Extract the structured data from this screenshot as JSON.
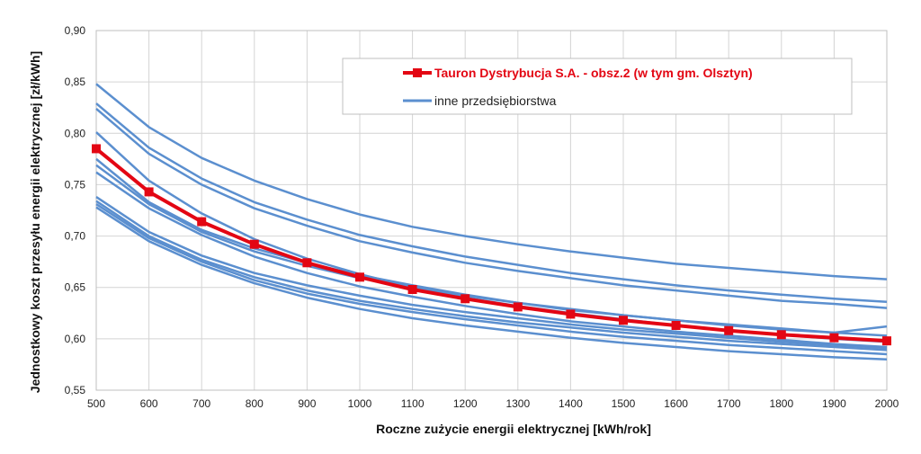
{
  "chart_data": {
    "type": "line",
    "xlabel": "Roczne zużycie energii elektrycznej [kWh/rok]",
    "ylabel": "Jednostkowy koszt przesyłu energii elektrycznej [zł/kWh]",
    "x": [
      500,
      600,
      700,
      800,
      900,
      1000,
      1100,
      1200,
      1300,
      1400,
      1500,
      1600,
      1700,
      1800,
      1900,
      2000
    ],
    "xticks": [
      "500",
      "600",
      "700",
      "800",
      "900",
      "1000",
      "1100",
      "1200",
      "1300",
      "1400",
      "1500",
      "1600",
      "1700",
      "1800",
      "1900",
      "2000"
    ],
    "yticks": [
      0.55,
      0.6,
      0.65,
      0.7,
      0.75,
      0.8,
      0.85,
      0.9
    ],
    "ytick_labels": [
      "0,55",
      "0,60",
      "0,65",
      "0,70",
      "0,75",
      "0,80",
      "0,85",
      "0,90"
    ],
    "ylim": [
      0.55,
      0.9
    ],
    "xlim": [
      500,
      2000
    ],
    "grid": true,
    "legend_position": "top-right",
    "highlight_color": "#e30613",
    "other_color": "#5b8fcf",
    "series": [
      {
        "name": "Tauron Dystrybucja S.A. - obsz.2 (w tym gm. Olsztyn)",
        "highlight": true,
        "marker": "square",
        "values": [
          0.785,
          0.743,
          0.714,
          0.692,
          0.674,
          0.66,
          0.648,
          0.639,
          0.631,
          0.624,
          0.618,
          0.613,
          0.608,
          0.604,
          0.601,
          0.598
        ]
      },
      {
        "name": "inne przedsiębiorstwa",
        "values": [
          0.848,
          0.806,
          0.776,
          0.754,
          0.736,
          0.721,
          0.709,
          0.7,
          0.692,
          0.685,
          0.679,
          0.673,
          0.669,
          0.665,
          0.661,
          0.658
        ]
      },
      {
        "values": [
          0.829,
          0.786,
          0.756,
          0.733,
          0.716,
          0.701,
          0.69,
          0.68,
          0.672,
          0.664,
          0.658,
          0.652,
          0.647,
          0.643,
          0.639,
          0.636
        ]
      },
      {
        "values": [
          0.824,
          0.78,
          0.75,
          0.727,
          0.71,
          0.695,
          0.684,
          0.674,
          0.666,
          0.659,
          0.652,
          0.647,
          0.642,
          0.637,
          0.634,
          0.63
        ]
      },
      {
        "values": [
          0.801,
          0.754,
          0.722,
          0.697,
          0.678,
          0.663,
          0.65,
          0.64,
          0.632,
          0.625,
          0.619,
          0.613,
          0.608,
          0.604,
          0.6,
          0.597
        ]
      },
      {
        "values": [
          0.775,
          0.733,
          0.706,
          0.688,
          0.674,
          0.662,
          0.652,
          0.643,
          0.635,
          0.629,
          0.623,
          0.618,
          0.614,
          0.61,
          0.606,
          0.612
        ]
      },
      {
        "values": [
          0.769,
          0.731,
          0.704,
          0.685,
          0.671,
          0.659,
          0.65,
          0.642,
          0.635,
          0.628,
          0.623,
          0.618,
          0.613,
          0.609,
          0.606,
          0.603
        ]
      },
      {
        "values": [
          0.762,
          0.727,
          0.701,
          0.68,
          0.664,
          0.651,
          0.641,
          0.632,
          0.624,
          0.617,
          0.612,
          0.607,
          0.603,
          0.599,
          0.595,
          0.592
        ]
      },
      {
        "values": [
          0.738,
          0.704,
          0.681,
          0.664,
          0.652,
          0.642,
          0.633,
          0.626,
          0.62,
          0.614,
          0.609,
          0.605,
          0.601,
          0.597,
          0.594,
          0.591
        ]
      },
      {
        "values": [
          0.734,
          0.7,
          0.677,
          0.66,
          0.647,
          0.637,
          0.629,
          0.622,
          0.616,
          0.611,
          0.606,
          0.602,
          0.598,
          0.595,
          0.592,
          0.589
        ]
      },
      {
        "values": [
          0.731,
          0.698,
          0.675,
          0.657,
          0.644,
          0.634,
          0.626,
          0.619,
          0.613,
          0.607,
          0.602,
          0.598,
          0.594,
          0.591,
          0.588,
          0.585
        ]
      },
      {
        "values": [
          0.728,
          0.695,
          0.672,
          0.654,
          0.64,
          0.629,
          0.62,
          0.613,
          0.607,
          0.601,
          0.596,
          0.592,
          0.588,
          0.585,
          0.582,
          0.58
        ]
      }
    ]
  }
}
